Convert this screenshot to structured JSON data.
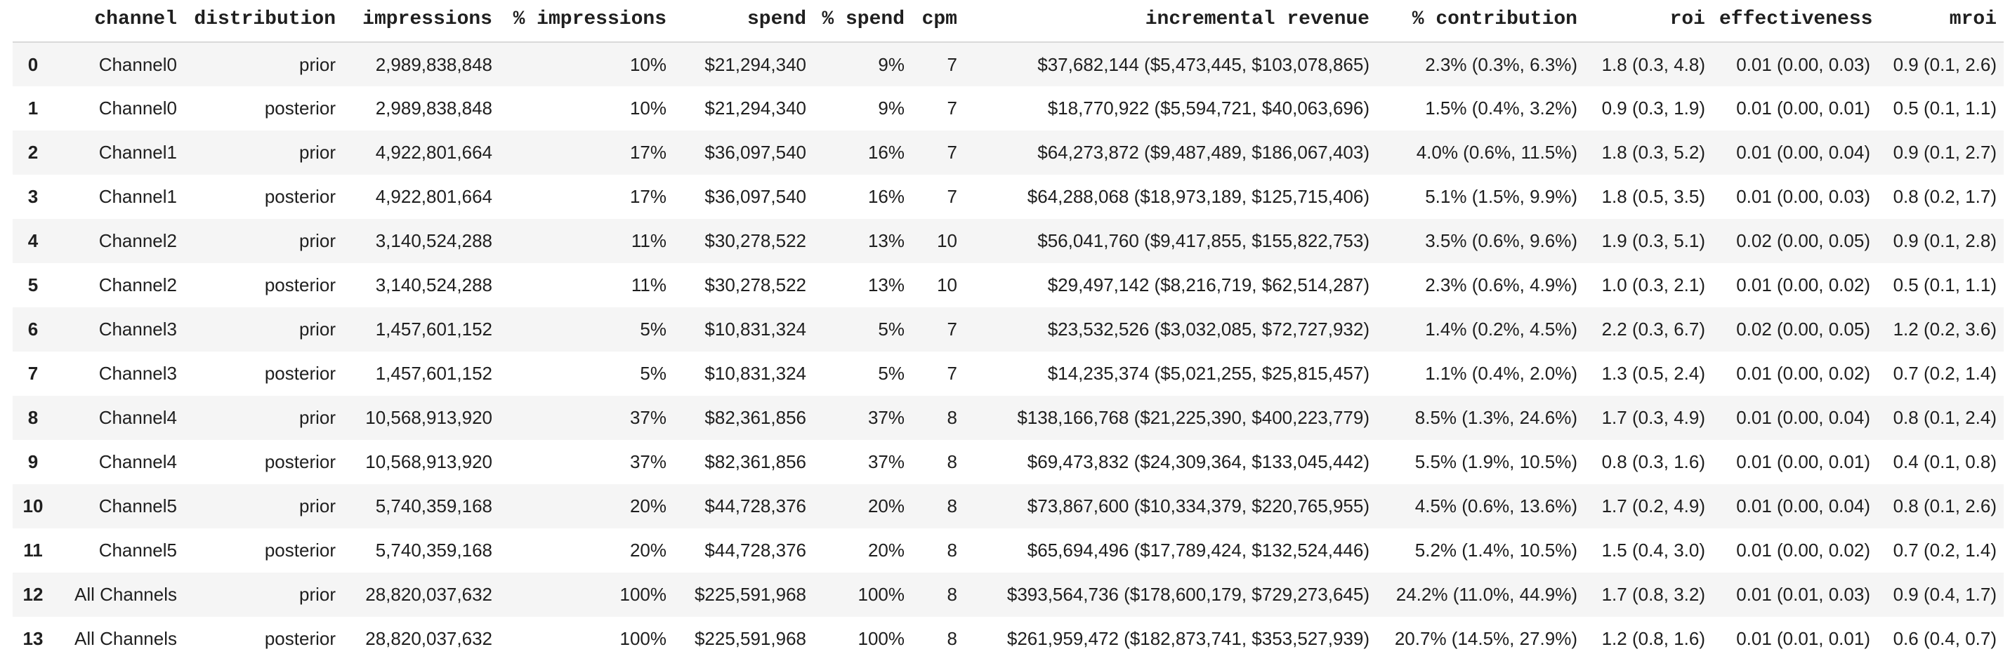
{
  "colors": {
    "row_stripe": "#f5f5f5",
    "header_border": "#d9d9d9",
    "text": "#1f1f1f",
    "background": "#ffffff"
  },
  "table": {
    "index_header": "",
    "columns": [
      "channel",
      "distribution",
      "impressions",
      "% impressions",
      "spend",
      "% spend",
      "cpm",
      "incremental revenue",
      "% contribution",
      "roi",
      "effectiveness",
      "mroi"
    ],
    "rows": [
      {
        "cells": [
          "0",
          "Channel0",
          "prior",
          "2,989,838,848",
          "10%",
          "$21,294,340",
          "9%",
          "7",
          "$37,682,144 ($5,473,445, $103,078,865)",
          "2.3% (0.3%, 6.3%)",
          "1.8 (0.3, 4.8)",
          "0.01 (0.00, 0.03)",
          "0.9 (0.1, 2.6)"
        ]
      },
      {
        "cells": [
          "1",
          "Channel0",
          "posterior",
          "2,989,838,848",
          "10%",
          "$21,294,340",
          "9%",
          "7",
          "$18,770,922 ($5,594,721, $40,063,696)",
          "1.5% (0.4%, 3.2%)",
          "0.9 (0.3, 1.9)",
          "0.01 (0.00, 0.01)",
          "0.5 (0.1, 1.1)"
        ]
      },
      {
        "cells": [
          "2",
          "Channel1",
          "prior",
          "4,922,801,664",
          "17%",
          "$36,097,540",
          "16%",
          "7",
          "$64,273,872 ($9,487,489, $186,067,403)",
          "4.0% (0.6%, 11.5%)",
          "1.8 (0.3, 5.2)",
          "0.01 (0.00, 0.04)",
          "0.9 (0.1, 2.7)"
        ]
      },
      {
        "cells": [
          "3",
          "Channel1",
          "posterior",
          "4,922,801,664",
          "17%",
          "$36,097,540",
          "16%",
          "7",
          "$64,288,068 ($18,973,189, $125,715,406)",
          "5.1% (1.5%, 9.9%)",
          "1.8 (0.5, 3.5)",
          "0.01 (0.00, 0.03)",
          "0.8 (0.2, 1.7)"
        ]
      },
      {
        "cells": [
          "4",
          "Channel2",
          "prior",
          "3,140,524,288",
          "11%",
          "$30,278,522",
          "13%",
          "10",
          "$56,041,760 ($9,417,855, $155,822,753)",
          "3.5% (0.6%, 9.6%)",
          "1.9 (0.3, 5.1)",
          "0.02 (0.00, 0.05)",
          "0.9 (0.1, 2.8)"
        ]
      },
      {
        "cells": [
          "5",
          "Channel2",
          "posterior",
          "3,140,524,288",
          "11%",
          "$30,278,522",
          "13%",
          "10",
          "$29,497,142 ($8,216,719, $62,514,287)",
          "2.3% (0.6%, 4.9%)",
          "1.0 (0.3, 2.1)",
          "0.01 (0.00, 0.02)",
          "0.5 (0.1, 1.1)"
        ]
      },
      {
        "cells": [
          "6",
          "Channel3",
          "prior",
          "1,457,601,152",
          "5%",
          "$10,831,324",
          "5%",
          "7",
          "$23,532,526 ($3,032,085, $72,727,932)",
          "1.4% (0.2%, 4.5%)",
          "2.2 (0.3, 6.7)",
          "0.02 (0.00, 0.05)",
          "1.2 (0.2, 3.6)"
        ]
      },
      {
        "cells": [
          "7",
          "Channel3",
          "posterior",
          "1,457,601,152",
          "5%",
          "$10,831,324",
          "5%",
          "7",
          "$14,235,374 ($5,021,255, $25,815,457)",
          "1.1% (0.4%, 2.0%)",
          "1.3 (0.5, 2.4)",
          "0.01 (0.00, 0.02)",
          "0.7 (0.2, 1.4)"
        ]
      },
      {
        "cells": [
          "8",
          "Channel4",
          "prior",
          "10,568,913,920",
          "37%",
          "$82,361,856",
          "37%",
          "8",
          "$138,166,768 ($21,225,390, $400,223,779)",
          "8.5% (1.3%, 24.6%)",
          "1.7 (0.3, 4.9)",
          "0.01 (0.00, 0.04)",
          "0.8 (0.1, 2.4)"
        ]
      },
      {
        "cells": [
          "9",
          "Channel4",
          "posterior",
          "10,568,913,920",
          "37%",
          "$82,361,856",
          "37%",
          "8",
          "$69,473,832 ($24,309,364, $133,045,442)",
          "5.5% (1.9%, 10.5%)",
          "0.8 (0.3, 1.6)",
          "0.01 (0.00, 0.01)",
          "0.4 (0.1, 0.8)"
        ]
      },
      {
        "cells": [
          "10",
          "Channel5",
          "prior",
          "5,740,359,168",
          "20%",
          "$44,728,376",
          "20%",
          "8",
          "$73,867,600 ($10,334,379, $220,765,955)",
          "4.5% (0.6%, 13.6%)",
          "1.7 (0.2, 4.9)",
          "0.01 (0.00, 0.04)",
          "0.8 (0.1, 2.6)"
        ]
      },
      {
        "cells": [
          "11",
          "Channel5",
          "posterior",
          "5,740,359,168",
          "20%",
          "$44,728,376",
          "20%",
          "8",
          "$65,694,496 ($17,789,424, $132,524,446)",
          "5.2% (1.4%, 10.5%)",
          "1.5 (0.4, 3.0)",
          "0.01 (0.00, 0.02)",
          "0.7 (0.2, 1.4)"
        ]
      },
      {
        "cells": [
          "12",
          "All Channels",
          "prior",
          "28,820,037,632",
          "100%",
          "$225,591,968",
          "100%",
          "8",
          "$393,564,736 ($178,600,179, $729,273,645)",
          "24.2% (11.0%, 44.9%)",
          "1.7 (0.8, 3.2)",
          "0.01 (0.01, 0.03)",
          "0.9 (0.4, 1.7)"
        ]
      },
      {
        "cells": [
          "13",
          "All Channels",
          "posterior",
          "28,820,037,632",
          "100%",
          "$225,591,968",
          "100%",
          "8",
          "$261,959,472 ($182,873,741, $353,527,939)",
          "20.7% (14.5%, 27.9%)",
          "1.2 (0.8, 1.6)",
          "0.01 (0.01, 0.01)",
          "0.6 (0.4, 0.7)"
        ]
      }
    ]
  }
}
